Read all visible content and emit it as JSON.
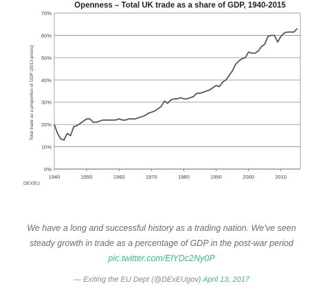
{
  "chart_data": {
    "type": "line",
    "title": "Openness – Total UK trade as a share of GDP, 1940-2015",
    "ylabel": "Total trade as a proportion of GDP (2013 prices)",
    "xlabel": "",
    "xlim": [
      1940,
      2016
    ],
    "ylim": [
      0,
      70
    ],
    "x_ticks": [
      "1940",
      "1950",
      "1960",
      "1970",
      "1980",
      "1990",
      "2000",
      "2010"
    ],
    "y_ticks": [
      "0%",
      "10%",
      "20%",
      "30%",
      "40%",
      "50%",
      "60%",
      "70%"
    ],
    "grid": "horizontal",
    "color": "#555555",
    "series": [
      {
        "x": [
          1940,
          1941,
          1942,
          1943,
          1944,
          1945,
          1946,
          1947,
          1948,
          1949,
          1950,
          1951,
          1952,
          1953,
          1954,
          1955,
          1956,
          1957,
          1958,
          1959,
          1960,
          1961,
          1962,
          1963,
          1964,
          1965,
          1966,
          1967,
          1968,
          1969,
          1970,
          1971,
          1972,
          1973,
          1974,
          1975,
          1976,
          1977,
          1978,
          1979,
          1980,
          1981,
          1982,
          1983,
          1984,
          1985,
          1986,
          1987,
          1988,
          1989,
          1990,
          1991,
          1992,
          1993,
          1994,
          1995,
          1996,
          1997,
          1998,
          1999,
          2000,
          2001,
          2002,
          2003,
          2004,
          2005,
          2006,
          2007,
          2008,
          2009,
          2010,
          2011,
          2012,
          2013,
          2014,
          2015
        ],
        "values": [
          20,
          16,
          13.5,
          13,
          16,
          15,
          19,
          19.5,
          20.5,
          21.5,
          22.5,
          22.5,
          21,
          21,
          21.5,
          22,
          22,
          22,
          22,
          22,
          22.5,
          22,
          22,
          22.5,
          22.5,
          22.5,
          23,
          23.5,
          24,
          25,
          25.5,
          26,
          27,
          28,
          30.5,
          29.5,
          31,
          31.5,
          31.5,
          32,
          31.5,
          31.5,
          32,
          32.5,
          34,
          34,
          34.5,
          35,
          35.5,
          36.5,
          37.5,
          37,
          39,
          40,
          42,
          44,
          47,
          48.5,
          49.5,
          50,
          52.5,
          52,
          52,
          53,
          55,
          56,
          59.5,
          60,
          60,
          57,
          59.5,
          61,
          61.5,
          61.5,
          61.5,
          63
        ]
      }
    ]
  },
  "source_label": "DEXEU",
  "tweet": {
    "line1": "We have a long and successful history as a trading nation. We’ve seen",
    "line2": "steady growth in trade as a percentage of GDP in the post-war period",
    "link": "pic.twitter.com/ElYDc2Ny0P",
    "attribution": "— Exiting the EU Dept (@DExEUgov)",
    "date": "April 13, 2017"
  }
}
